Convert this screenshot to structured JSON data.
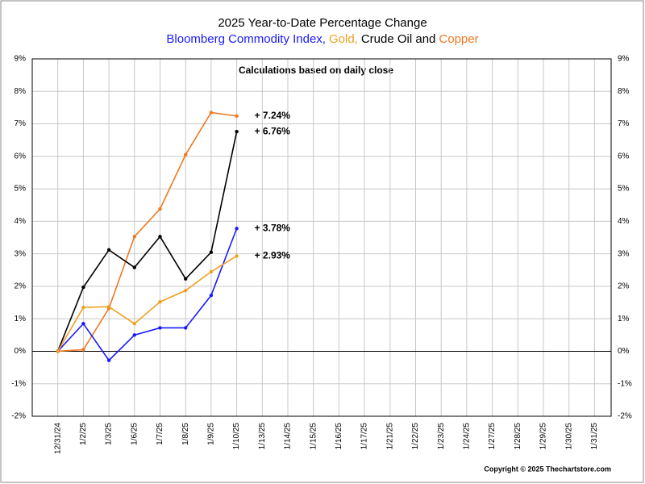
{
  "chart_data": {
    "type": "line",
    "title": "2025 Year-to-Date Percentage Change",
    "subtitle_parts": [
      {
        "text": "Bloomberg Commodity Index,",
        "color": "#1a1aff"
      },
      {
        "text": "Gold,",
        "color": "#f0a020"
      },
      {
        "text": "Crude Oil and",
        "color": "#000000"
      },
      {
        "text": "Copper",
        "color": "#f07820"
      }
    ],
    "annotation": "Calculations based on daily close",
    "copyright": "Copyright © 2025 Thechartstore.com",
    "categories": [
      "12/31/24",
      "1/2/25",
      "1/3/25",
      "1/6/25",
      "1/7/25",
      "1/8/25",
      "1/9/25",
      "1/10/25",
      "1/13/25",
      "1/14/25",
      "1/15/25",
      "1/16/25",
      "1/17/25",
      "1/21/25",
      "1/22/25",
      "1/23/25",
      "1/24/25",
      "1/27/25",
      "1/28/25",
      "1/29/25",
      "1/30/25",
      "1/31/25"
    ],
    "series": [
      {
        "name": "Copper",
        "color": "#f07820",
        "values": [
          0,
          0.05,
          1.32,
          3.53,
          4.38,
          6.05,
          7.35,
          7.24,
          null,
          null,
          null,
          null,
          null,
          null,
          null,
          null,
          null,
          null,
          null,
          null,
          null,
          null
        ],
        "value_labels": [
          null,
          null,
          null,
          null,
          null,
          null,
          null,
          "+ 7.24%",
          null,
          null,
          null,
          null,
          null,
          null,
          null,
          null,
          null,
          null,
          null,
          null,
          null,
          null
        ]
      },
      {
        "name": "Crude Oil",
        "color": "#000000",
        "values": [
          0,
          1.97,
          3.12,
          2.58,
          3.53,
          2.23,
          3.05,
          6.76,
          null,
          null,
          null,
          null,
          null,
          null,
          null,
          null,
          null,
          null,
          null,
          null,
          null,
          null
        ],
        "value_labels": [
          null,
          null,
          null,
          null,
          null,
          null,
          null,
          "+ 6.76%",
          null,
          null,
          null,
          null,
          null,
          null,
          null,
          null,
          null,
          null,
          null,
          null,
          null,
          null
        ]
      },
      {
        "name": "Bloomberg Commodity Index",
        "color": "#1a1aff",
        "values": [
          0,
          0.85,
          -0.28,
          0.5,
          0.72,
          0.72,
          1.72,
          3.78,
          null,
          null,
          null,
          null,
          null,
          null,
          null,
          null,
          null,
          null,
          null,
          null,
          null,
          null
        ],
        "value_labels": [
          null,
          null,
          null,
          null,
          null,
          null,
          null,
          "+ 3.78%",
          null,
          null,
          null,
          null,
          null,
          null,
          null,
          null,
          null,
          null,
          null,
          null,
          null,
          null
        ]
      },
      {
        "name": "Gold",
        "color": "#f0a020",
        "values": [
          0,
          1.35,
          1.37,
          0.85,
          1.52,
          1.87,
          2.45,
          2.93,
          null,
          null,
          null,
          null,
          null,
          null,
          null,
          null,
          null,
          null,
          null,
          null,
          null,
          null
        ],
        "value_labels": [
          null,
          null,
          null,
          null,
          null,
          null,
          null,
          "+ 2.93%",
          null,
          null,
          null,
          null,
          null,
          null,
          null,
          null,
          null,
          null,
          null,
          null,
          null,
          null
        ]
      }
    ],
    "ylim": [
      -2,
      9
    ],
    "yticks": [
      {
        "value": -2,
        "label": "-2%"
      },
      {
        "value": -1,
        "label": "-1%"
      },
      {
        "value": 0,
        "label": "0%"
      },
      {
        "value": 1,
        "label": "1%"
      },
      {
        "value": 2,
        "label": "2%"
      },
      {
        "value": 3,
        "label": "3%"
      },
      {
        "value": 4,
        "label": "4%"
      },
      {
        "value": 5,
        "label": "5%"
      },
      {
        "value": 6,
        "label": "6%"
      },
      {
        "value": 7,
        "label": "7%"
      },
      {
        "value": 8,
        "label": "8%"
      },
      {
        "value": 9,
        "label": "9%"
      }
    ],
    "grid": true
  }
}
